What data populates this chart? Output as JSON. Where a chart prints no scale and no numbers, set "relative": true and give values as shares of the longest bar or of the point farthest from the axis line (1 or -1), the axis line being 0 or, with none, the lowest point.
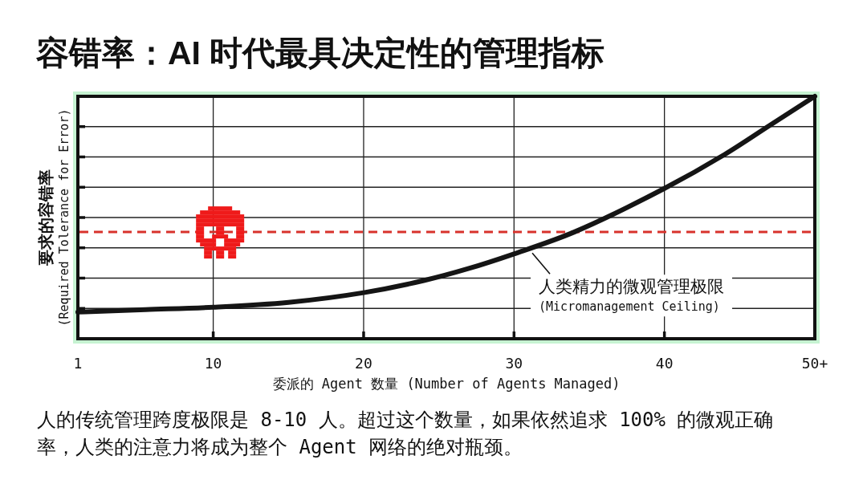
{
  "chart_data": {
    "type": "line",
    "title": "容错率：AI 时代最具决定性的管理指标",
    "xlabel": "委派的 Agent 数量 (Number of Agents Managed)",
    "ylabel": "要求的容错率\n(Required Tolerance for Error)",
    "relative": true,
    "tick_labels": "x",
    "grid": true,
    "x": [
      1,
      5.5,
      10,
      15,
      20,
      24,
      27,
      30,
      34,
      40,
      44,
      47,
      50
    ],
    "series": [
      {
        "color": "#151515",
        "values": [
          0.11,
          0.12,
          0.13,
          0.15,
          0.19,
          0.24,
          0.29,
          0.35,
          0.44,
          0.62,
          0.76,
          0.88,
          1
        ]
      }
    ],
    "xlim": [
      1,
      50
    ],
    "xticks": [
      1,
      10,
      20,
      30,
      40,
      {
        "value": 50,
        "label": "50+"
      }
    ],
    "ref_lines": [
      {
        "axis": "y",
        "value": 0.44,
        "color": "#d8322c",
        "line_style": "dashed"
      }
    ],
    "annotations": [
      {
        "text": "人类精力的微观管理极限\n(Micromanagement Ceiling)",
        "x": 31,
        "y": 0.37
      },
      "人的传统管理跨度极限是 8-10 人。超过这个数量，如果依然追求 100% 的微观正确率，人类的注意力将成为整个 Agent 网络的绝对瓶颈。"
    ]
  }
}
